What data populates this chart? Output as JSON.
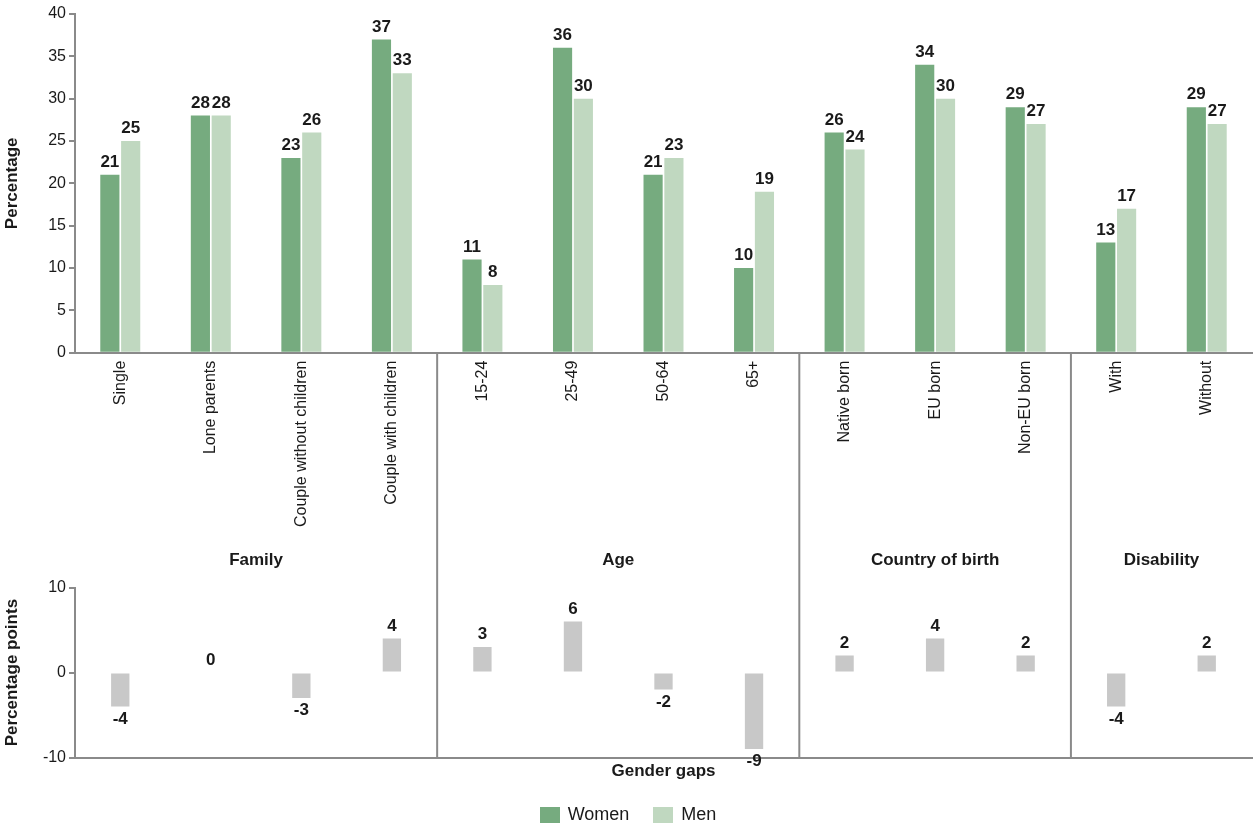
{
  "chart_data": [
    {
      "type": "bar",
      "ylabel": "Percentage",
      "categories": [
        "Single",
        "Lone parents",
        "Couple without children",
        "Couple with children",
        "15-24",
        "25-49",
        "50-64",
        "65+",
        "Native born",
        "EU born",
        "Non-EU born",
        "With",
        "Without"
      ],
      "series": [
        {
          "name": "Women",
          "color": "#76ab7f",
          "values": [
            21,
            28,
            23,
            37,
            11,
            36,
            21,
            10,
            26,
            34,
            29,
            13,
            29
          ]
        },
        {
          "name": "Men",
          "color": "#c0d8c0",
          "values": [
            25,
            28,
            26,
            33,
            8,
            30,
            23,
            19,
            24,
            30,
            27,
            17,
            27
          ]
        }
      ],
      "ylim": [
        0,
        40
      ],
      "yticks": [
        0,
        5,
        10,
        15,
        20,
        25,
        30,
        35,
        40
      ],
      "grid": false,
      "data_labels": true,
      "legend": "bottom",
      "annotations": [
        "Family",
        "Age",
        "Country of birth",
        "Disability"
      ]
    },
    {
      "type": "bar",
      "ylabel": "Percentage points",
      "xlabel": "Gender gaps",
      "categories": [
        null,
        null,
        null,
        null,
        null,
        null,
        null,
        null,
        null,
        null,
        null,
        null,
        null
      ],
      "values": [
        -4,
        0,
        -3,
        4,
        3,
        6,
        -2,
        -9,
        2,
        4,
        2,
        -4,
        2
      ],
      "color": "#c8c8c8",
      "ylim": [
        -10,
        10
      ],
      "yticks": [
        -10,
        0,
        10
      ],
      "grid": false,
      "data_labels": true,
      "tick_labels": "y"
    }
  ]
}
